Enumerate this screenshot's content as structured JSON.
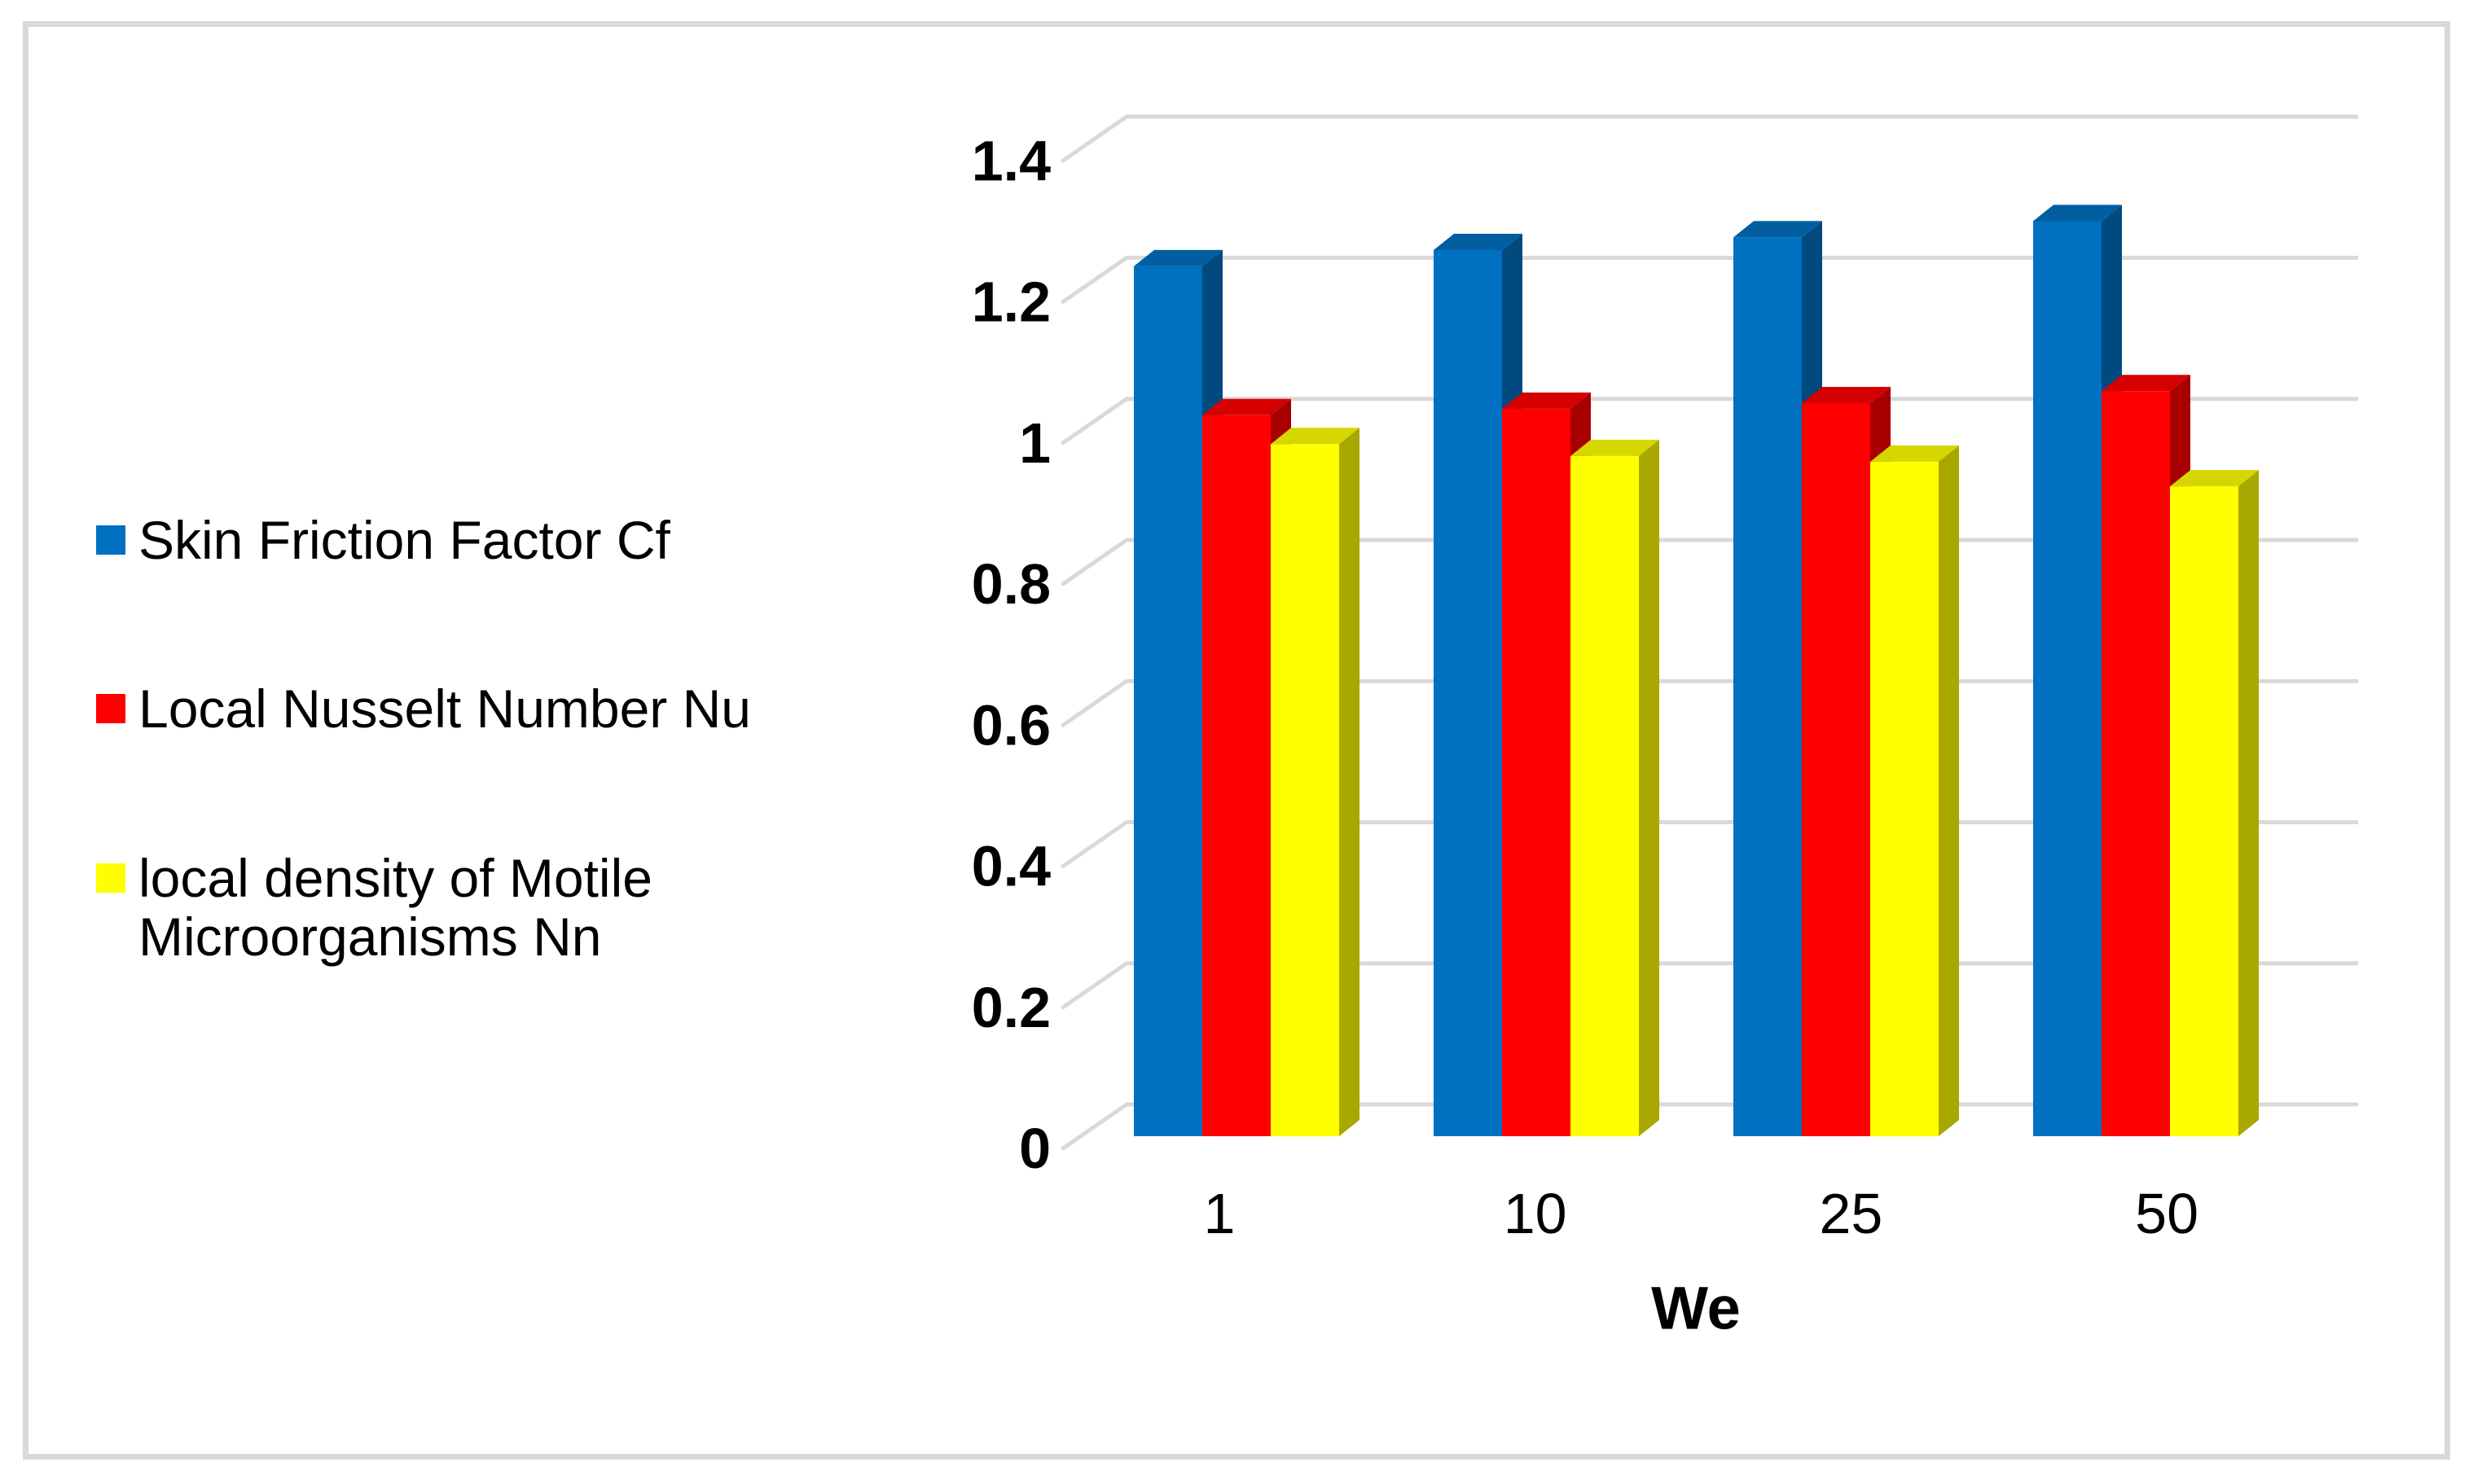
{
  "figure": {
    "background": "#FFFFFF",
    "frame_color": "#D9D9D9"
  },
  "chart_data": {
    "type": "bar",
    "subtype": "3d-clustered-column",
    "title": "",
    "xlabel": "We",
    "ylabel": "",
    "categories": [
      "1",
      "10",
      "25",
      "50"
    ],
    "series": [
      {
        "name": "Skin Friction Factor Cf",
        "color": "#0070C0",
        "values": [
          1.233,
          1.256,
          1.274,
          1.297
        ]
      },
      {
        "name": "Local Nusselt Number Nu",
        "color": "#FF0000",
        "values": [
          1.022,
          1.031,
          1.039,
          1.056
        ]
      },
      {
        "name": "local density of Motile Microorganisms Nn",
        "color": "#FFFF00",
        "values": [
          0.981,
          0.964,
          0.956,
          0.921
        ]
      }
    ],
    "ylim": [
      0,
      1.4
    ],
    "y_tick_step": 0.2,
    "y_tick_labels": [
      "0",
      "0.2",
      "0.4",
      "0.6",
      "0.8",
      "1",
      "1.2",
      "1.4"
    ],
    "gridlines": true,
    "gridline_color": "#D9D9D9",
    "legend_position": "left"
  }
}
